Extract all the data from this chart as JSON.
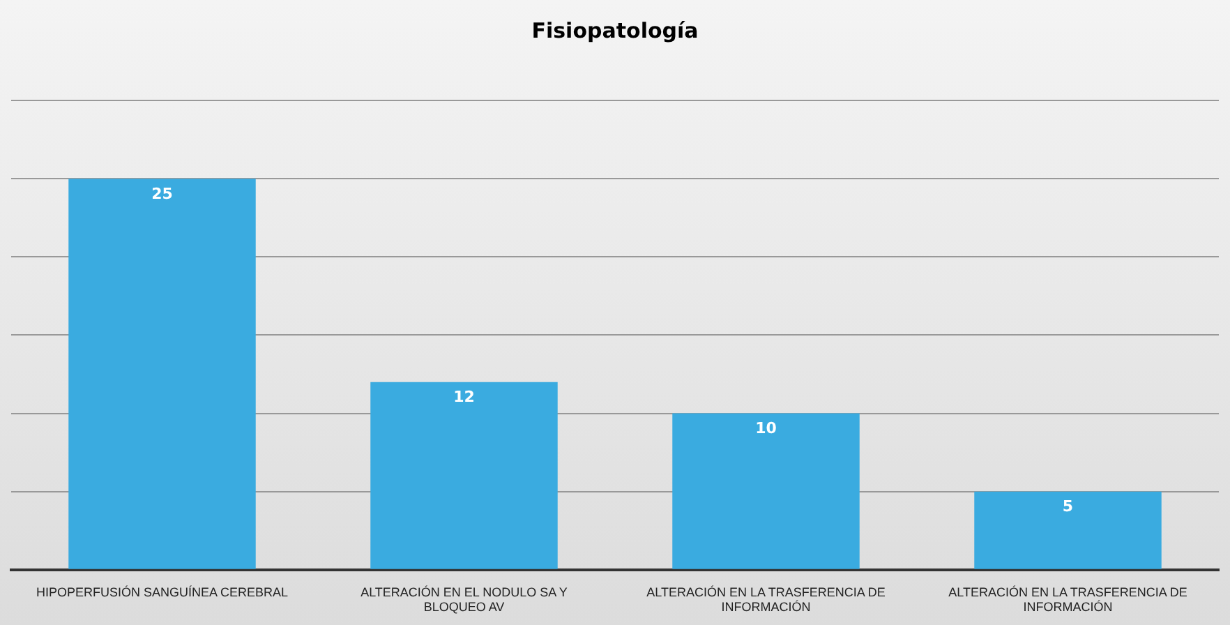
{
  "chart_data": {
    "type": "bar",
    "title": "Fisiopatología",
    "categories": [
      "HIPOPERFUSIÓN SANGUÍNEA CEREBRAL",
      "ALTERACIÓN EN EL NODULO SA Y BLOQUEO AV",
      "ALTERACIÓN EN LA TRASFERENCIA DE INFORMACIÓN",
      "ALTERACIÓN EN LA TRASFERENCIA DE INFORMACIÓN"
    ],
    "values": [
      25,
      12,
      10,
      5
    ],
    "color": "#3aabe0",
    "ylim": [
      0,
      30
    ],
    "yticks": [
      {
        "value": 0,
        "label": null
      },
      {
        "value": 5,
        "label": null
      },
      {
        "value": 10,
        "label": null
      },
      {
        "value": 15,
        "label": null
      },
      {
        "value": 20,
        "label": null
      },
      {
        "value": 25,
        "label": null
      },
      {
        "value": 30,
        "label": null
      }
    ],
    "tick_labels": "x",
    "grid": "y",
    "data_labels": true,
    "legend": false
  }
}
